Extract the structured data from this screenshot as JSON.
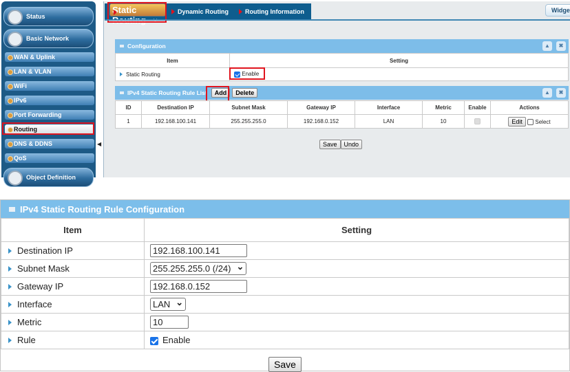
{
  "sidebar": {
    "status": "Status",
    "basic_network": "Basic Network",
    "items": [
      "WAN & Uplink",
      "LAN & VLAN",
      "WiFi",
      "IPv6",
      "Port Forwarding",
      "Routing",
      "DNS & DDNS",
      "QoS"
    ],
    "object_definition": "Object Definition",
    "collapse_icon": "◀"
  },
  "tabs": [
    "Static Routing",
    "Dynamic Routing",
    "Routing Information"
  ],
  "widget_label": "Widge",
  "config": {
    "title": "Configuration",
    "col_item": "Item",
    "col_setting": "Setting",
    "row_label": "Static Routing",
    "enable_label": "Enable",
    "enabled": true
  },
  "rule_list": {
    "title": "IPv4 Static Routing Rule List",
    "add": "Add",
    "delete": "Delete",
    "columns": [
      "ID",
      "Destination IP",
      "Subnet Mask",
      "Gateway IP",
      "Interface",
      "Metric",
      "Enable",
      "Actions"
    ],
    "rows": [
      {
        "id": "1",
        "dest": "192.168.100.141",
        "mask": "255.255.255.0",
        "gateway": "192.168.0.152",
        "iface": "LAN",
        "metric": "10",
        "enabled": true,
        "edit": "Edit",
        "select": "Select"
      }
    ]
  },
  "save": "Save",
  "undo": "Undo",
  "rule_config": {
    "title": "IPv4 Static Routing Rule Configuration",
    "col_item": "Item",
    "col_setting": "Setting",
    "labels": {
      "dest": "Destination IP",
      "mask": "Subnet Mask",
      "gateway": "Gateway IP",
      "iface": "Interface",
      "metric": "Metric",
      "rule": "Rule"
    },
    "values": {
      "dest": "192.168.100.141",
      "mask": "255.255.255.0 (/24)",
      "gateway": "192.168.0.152",
      "iface": "LAN",
      "metric": "10",
      "rule_enable": "Enable"
    },
    "save": "Save"
  },
  "colors": {
    "sidebar": "#1d5a86",
    "panel_header": "#7cbeea",
    "highlight": "#e0141e"
  }
}
